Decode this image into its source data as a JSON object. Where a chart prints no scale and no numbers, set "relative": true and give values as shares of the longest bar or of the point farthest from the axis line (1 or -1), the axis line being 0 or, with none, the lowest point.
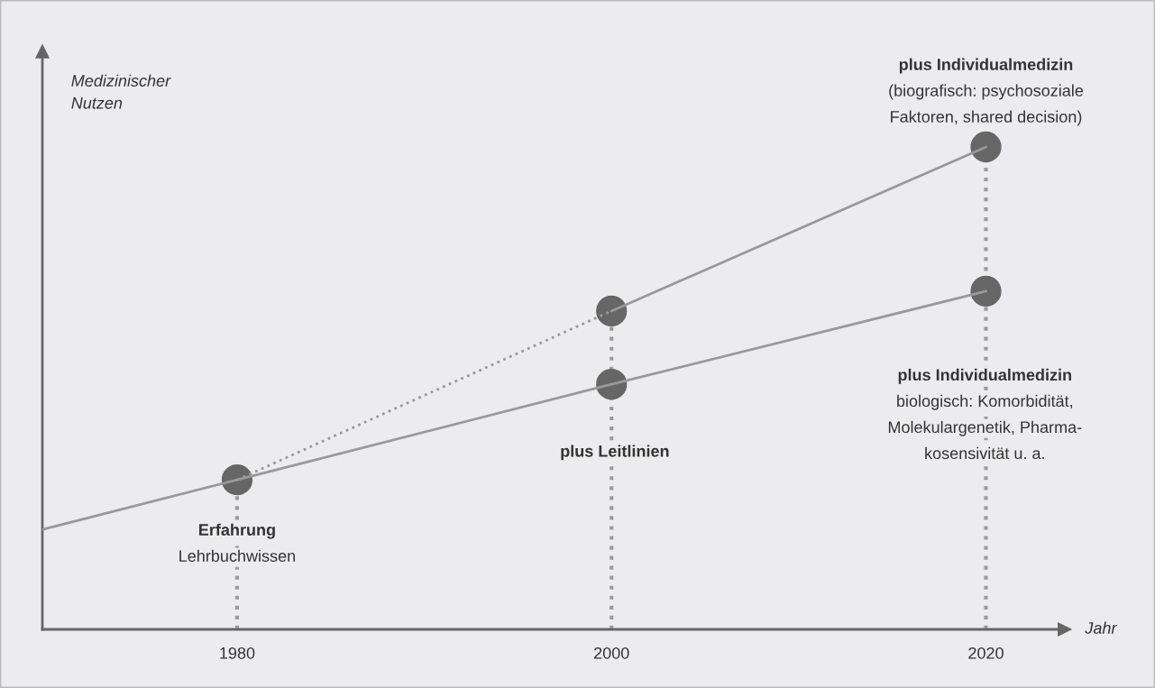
{
  "chart_data": {
    "type": "line",
    "relative": true,
    "xlabel": "Jahr",
    "ylabel": "Medizinischer\nNutzen",
    "xlim": [
      1969.6,
      2024.2
    ],
    "xticks": [
      1980,
      2000,
      2020
    ],
    "tick_labels": "x",
    "series": [
      {
        "x": [
          1969.6,
          1980,
          2000,
          2020
        ],
        "values": [
          0.207,
          0.31,
          0.508,
          0.701
        ],
        "color": "#999999",
        "line_style": "solid",
        "marker": "none"
      },
      {
        "x": [
          1980,
          2000
        ],
        "values": [
          0.31,
          0.66
        ],
        "color": "#999999",
        "line_style": "dotted",
        "marker": "none"
      },
      {
        "x": [
          2000,
          2020
        ],
        "values": [
          0.66,
          1.0
        ],
        "color": "#999999",
        "line_style": "solid",
        "marker": "none"
      },
      {
        "type": "lollipop",
        "x": [
          1980,
          2000,
          2020
        ],
        "values": [
          0.31,
          0.66,
          1.0
        ],
        "color": "#666666",
        "line_style": "dotted",
        "marker": "circle"
      },
      {
        "type": "scatter",
        "x": [
          2000,
          2020
        ],
        "values": [
          0.508,
          0.701
        ],
        "color": "#666666",
        "marker": "circle"
      }
    ],
    "annotations": [
      {
        "text": "Erfahrung\nLehrbuchwissen",
        "x": 1980,
        "y": 0.31
      },
      "plus Leitlinien",
      {
        "text": "plus Individualmedizin\n(biografisch: psychosoziale\nFaktoren, shared decision)",
        "x": 2020,
        "y": 1.0
      },
      "plus Individualmedizin\nbiologisch: Komorbidität,\nMolekulargenetik, Pharma-\nkosensivität u. a."
    ]
  }
}
